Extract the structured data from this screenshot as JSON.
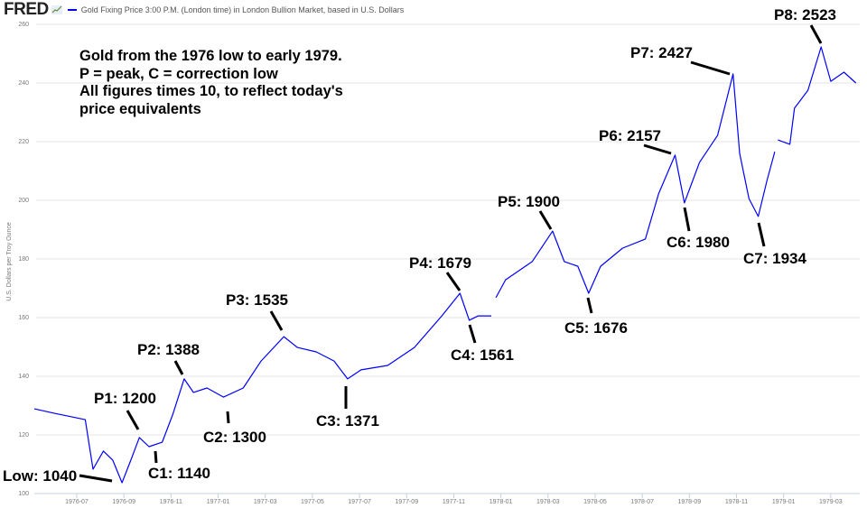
{
  "header": {
    "logo": "FRED",
    "logo_icon": "line-chart-icon",
    "legend_label": "Gold Fixing Price 3:00 P.M. (London time) in London Bullion Market, based in U.S. Dollars"
  },
  "note": {
    "lines": [
      "Gold from the 1976 low to early 1979.",
      "P = peak, C = correction low",
      "All figures times 10, to reflect today's",
      "price equivalents"
    ]
  },
  "annotations": {
    "low": "Low: 1040",
    "p1": "P1: 1200",
    "c1": "C1: 1140",
    "p2": "P2: 1388",
    "c2": "C2: 1300",
    "p3": "P3: 1535",
    "c3": "C3: 1371",
    "p4": "P4: 1679",
    "c4": "C4: 1561",
    "p5": "P5: 1900",
    "c5": "C5: 1676",
    "p6": "P6: 2157",
    "c6": "C6: 1980",
    "p7": "P7: 2427",
    "c7": "C7: 1934",
    "p8": "P8: 2523"
  },
  "chart_data": {
    "type": "line",
    "title": "",
    "xlabel": "",
    "ylabel": "U.S. Dollars per Troy Ounce",
    "ylim": [
      100,
      260
    ],
    "grid": true,
    "legend": "top-left",
    "line_color": "#0000ff",
    "yticks": [
      "100",
      "120",
      "140",
      "160",
      "180",
      "200",
      "220",
      "240",
      "260"
    ],
    "xticks": [
      "1976-07",
      "1976-09",
      "1976-11",
      "1977-01",
      "1977-03",
      "1977-05",
      "1977-07",
      "1977-09",
      "1977-11",
      "1978-01",
      "1978-03",
      "1978-05",
      "1978-07",
      "1978-09",
      "1978-11",
      "1979-01",
      "1979-03"
    ],
    "series": [
      {
        "name": "Gold Fixing Price 3:00 P.M. (London time) in London Bullion Market, based in U.S. Dollars",
        "x": [
          "1976-05-07",
          "1976-06-02",
          "1976-07-12",
          "1976-07-22",
          "1976-08-05",
          "1976-08-17",
          "1976-08-29",
          "1976-09-10",
          "1976-09-21",
          "1976-10-03",
          "1976-10-20",
          "1976-11-03",
          "1976-11-18",
          "1976-11-30",
          "1976-12-17",
          "1977-01-08",
          "1977-02-03",
          "1977-02-26",
          "1977-03-25",
          "1977-04-12",
          "1977-05-06",
          "1977-05-29",
          "1977-06-16",
          "1977-07-03",
          "1977-08-07",
          "1977-09-11",
          "1977-10-16",
          "1977-11-09",
          "1977-11-21",
          "1977-12-02",
          "1977-12-19",
          "1977-12-22",
          "1977-12-25",
          "1978-01-07",
          "1978-02-11",
          "1978-03-07",
          "1978-03-22",
          "1978-04-09",
          "1978-04-23",
          "1978-05-08",
          "1978-06-06",
          "1978-07-05",
          "1978-07-22",
          "1978-08-13",
          "1978-08-25",
          "1978-09-14",
          "1978-10-07",
          "1978-10-27",
          "1978-11-05",
          "1978-11-17",
          "1978-11-29",
          "1978-12-10",
          "1978-12-20",
          "1978-12-22",
          "1978-12-24",
          "1979-01-09",
          "1979-01-15",
          "1979-02-02",
          "1979-02-19",
          "1979-03-01",
          "1979-03-18",
          "1979-04-03"
        ],
        "values": [
          128.9,
          127.4,
          125.2,
          108.3,
          114.5,
          111.4,
          103.7,
          111.4,
          119.1,
          116.0,
          117.5,
          126.8,
          139.1,
          134.5,
          136.0,
          132.9,
          136.0,
          145.2,
          153.5,
          149.8,
          148.3,
          145.2,
          139.1,
          142.2,
          143.7,
          149.8,
          160.6,
          168.3,
          159.1,
          160.6,
          160.6,
          null,
          166.8,
          172.9,
          179.1,
          189.5,
          179.1,
          177.5,
          168.3,
          177.5,
          183.7,
          186.8,
          202.2,
          215.4,
          199.1,
          212.9,
          222.2,
          243.1,
          216.0,
          200.6,
          194.5,
          206.8,
          216.6,
          null,
          220.6,
          219.1,
          231.4,
          237.5,
          252.3,
          240.6,
          243.7,
          240.0
        ]
      }
    ]
  }
}
